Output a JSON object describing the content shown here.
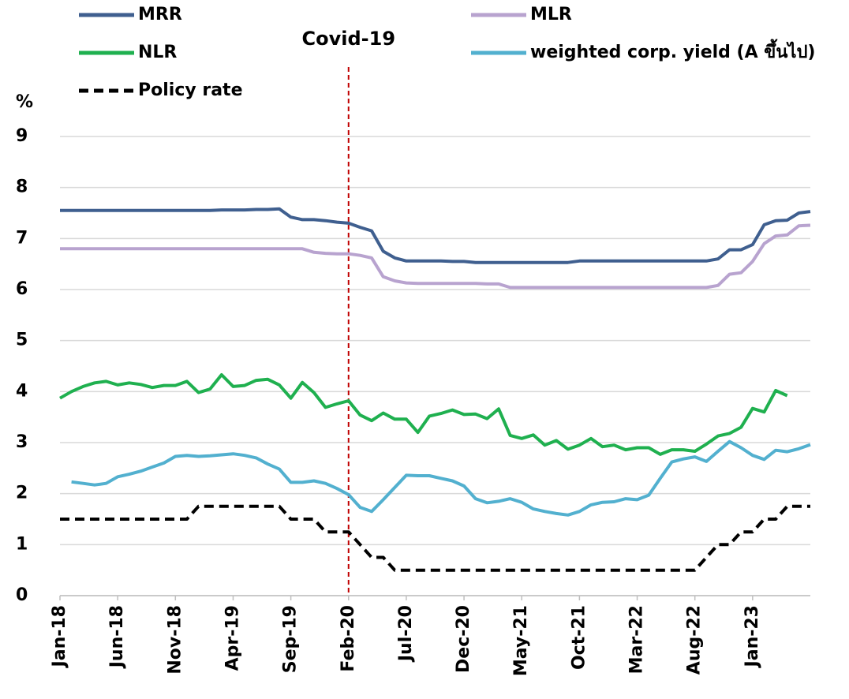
{
  "chart_data": {
    "type": "line",
    "ylabel": "%",
    "categories": [
      "Jan-18",
      null,
      null,
      null,
      null,
      "Jun-18",
      null,
      null,
      null,
      null,
      "Nov-18",
      null,
      null,
      null,
      null,
      "Apr-19",
      null,
      null,
      null,
      null,
      "Sep-19",
      null,
      null,
      null,
      null,
      "Feb-20",
      null,
      null,
      null,
      null,
      "Jul-20",
      null,
      null,
      null,
      null,
      "Dec-20",
      null,
      null,
      null,
      null,
      "May-21",
      null,
      null,
      null,
      null,
      "Oct-21",
      null,
      null,
      null,
      null,
      "Mar-22",
      null,
      null,
      null,
      null,
      "Aug-22",
      null,
      null,
      null,
      null,
      "Jan-23",
      null,
      null,
      null,
      null,
      null
    ],
    "series": [
      {
        "name": "MRR",
        "color": "#3f5f8f",
        "style": "solid",
        "values": [
          7.55,
          7.55,
          7.55,
          7.55,
          7.55,
          7.55,
          7.55,
          7.55,
          7.55,
          7.55,
          7.55,
          7.55,
          7.55,
          7.55,
          7.56,
          7.56,
          7.56,
          7.57,
          7.57,
          7.58,
          7.42,
          7.37,
          7.37,
          7.35,
          7.32,
          7.3,
          7.22,
          7.15,
          6.75,
          6.62,
          6.56,
          6.56,
          6.56,
          6.56,
          6.55,
          6.55,
          6.53,
          6.53,
          6.53,
          6.53,
          6.53,
          6.53,
          6.53,
          6.53,
          6.53,
          6.56,
          6.56,
          6.56,
          6.56,
          6.56,
          6.56,
          6.56,
          6.56,
          6.56,
          6.56,
          6.56,
          6.56,
          6.6,
          6.78,
          6.78,
          6.88,
          7.27,
          7.35,
          7.36,
          7.5,
          7.53
        ]
      },
      {
        "name": "MLR",
        "color": "#b8a3cf",
        "style": "solid",
        "values": [
          6.8,
          6.8,
          6.8,
          6.8,
          6.8,
          6.8,
          6.8,
          6.8,
          6.8,
          6.8,
          6.8,
          6.8,
          6.8,
          6.8,
          6.8,
          6.8,
          6.8,
          6.8,
          6.8,
          6.8,
          6.8,
          6.8,
          6.73,
          6.71,
          6.7,
          6.7,
          6.67,
          6.62,
          6.25,
          6.17,
          6.13,
          6.12,
          6.12,
          6.12,
          6.12,
          6.12,
          6.12,
          6.11,
          6.11,
          6.04,
          6.04,
          6.04,
          6.04,
          6.04,
          6.04,
          6.04,
          6.04,
          6.04,
          6.04,
          6.04,
          6.04,
          6.04,
          6.04,
          6.04,
          6.04,
          6.04,
          6.04,
          6.08,
          6.3,
          6.33,
          6.55,
          6.9,
          7.05,
          7.07,
          7.25,
          7.26
        ]
      },
      {
        "name": "NLR",
        "color": "#1fb04f",
        "style": "solid",
        "values": [
          3.87,
          4.0,
          4.1,
          4.17,
          4.2,
          4.13,
          4.17,
          4.14,
          4.08,
          4.12,
          4.12,
          4.2,
          3.98,
          4.05,
          4.33,
          4.1,
          4.12,
          4.22,
          4.24,
          4.13,
          3.87,
          4.18,
          3.98,
          3.69,
          3.76,
          3.82,
          3.54,
          3.43,
          3.58,
          3.46,
          3.46,
          3.2,
          3.52,
          3.57,
          3.64,
          3.55,
          3.56,
          3.47,
          3.66,
          3.14,
          3.08,
          3.15,
          2.95,
          3.04,
          2.87,
          2.95,
          3.08,
          2.92,
          2.95,
          2.86,
          2.9,
          2.9,
          2.77,
          2.86,
          2.86,
          2.83,
          2.97,
          3.13,
          3.18,
          3.3,
          3.67,
          3.6,
          4.02,
          3.92,
          null,
          null
        ]
      },
      {
        "name": "weighted corp. yield (A ขึ้นไป)",
        "color": "#52b0cf",
        "style": "solid",
        "values": [
          null,
          2.23,
          2.2,
          2.17,
          2.2,
          2.33,
          2.38,
          2.44,
          2.52,
          2.6,
          2.73,
          2.75,
          2.73,
          2.74,
          2.76,
          2.78,
          2.75,
          2.7,
          2.58,
          2.48,
          2.22,
          2.22,
          2.25,
          2.2,
          2.1,
          1.98,
          1.73,
          1.65,
          1.88,
          2.12,
          2.36,
          2.35,
          2.35,
          2.3,
          2.25,
          2.15,
          1.9,
          1.82,
          1.85,
          1.9,
          1.83,
          1.7,
          1.65,
          1.61,
          1.58,
          1.65,
          1.78,
          1.83,
          1.84,
          1.9,
          1.88,
          1.97,
          2.3,
          2.62,
          2.68,
          2.72,
          2.63,
          2.83,
          3.02,
          2.9,
          2.75,
          2.67,
          2.85,
          2.82,
          2.88,
          2.96
        ]
      },
      {
        "name": "Policy rate",
        "color": "#000000",
        "style": "dashed",
        "values": [
          1.5,
          1.5,
          1.5,
          1.5,
          1.5,
          1.5,
          1.5,
          1.5,
          1.5,
          1.5,
          1.5,
          1.5,
          1.75,
          1.75,
          1.75,
          1.75,
          1.75,
          1.75,
          1.75,
          1.75,
          1.5,
          1.5,
          1.5,
          1.25,
          1.25,
          1.25,
          1.0,
          0.75,
          0.75,
          0.5,
          0.5,
          0.5,
          0.5,
          0.5,
          0.5,
          0.5,
          0.5,
          0.5,
          0.5,
          0.5,
          0.5,
          0.5,
          0.5,
          0.5,
          0.5,
          0.5,
          0.5,
          0.5,
          0.5,
          0.5,
          0.5,
          0.5,
          0.5,
          0.5,
          0.5,
          0.5,
          0.75,
          1.0,
          1.0,
          1.25,
          1.25,
          1.5,
          1.5,
          1.75,
          1.75,
          1.75
        ]
      }
    ],
    "ylim": [
      0,
      9
    ],
    "yticks": [
      0,
      1,
      2,
      3,
      4,
      5,
      6,
      7,
      8,
      9
    ],
    "grid": true,
    "annotations": [
      {
        "text": "Covid-19",
        "x": "Feb-20",
        "color": "#c00000"
      }
    ]
  }
}
